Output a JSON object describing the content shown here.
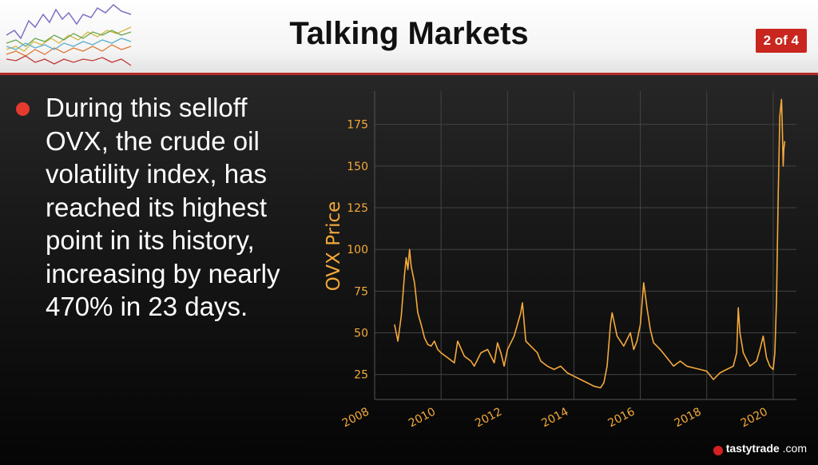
{
  "header": {
    "title": "Talking Markets",
    "page_badge": "2 of 4",
    "logo_icon": "multi-line-chart-logo-icon"
  },
  "bullet": {
    "text": "During this selloff OVX, the crude oil volatility index, has reached its highest point in its history, increasing by nearly 470% in 23 days.",
    "icon": "red-bullet-icon"
  },
  "brand": {
    "name": "tastytrade",
    "suffix": ".com",
    "icon": "cherry-icon"
  },
  "colors": {
    "line": "#f4a93b",
    "accent": "#c8261e",
    "bullet": "#e53a2e"
  },
  "chart_data": {
    "type": "line",
    "title": "",
    "xlabel": "",
    "ylabel": "OVX Price",
    "xlim": [
      2008,
      2020.7
    ],
    "ylim": [
      10,
      195
    ],
    "xticks": [
      "2008",
      "2010",
      "2012",
      "2014",
      "2016",
      "2018",
      "2020"
    ],
    "yticks": [
      "25",
      "50",
      "75",
      "100",
      "125",
      "150",
      "175"
    ],
    "grid": true,
    "series": [
      {
        "color": "#f4a93b",
        "x": [
          2008.6,
          2008.7,
          2008.8,
          2008.9,
          2008.95,
          2009.0,
          2009.05,
          2009.1,
          2009.2,
          2009.3,
          2009.4,
          2009.5,
          2009.6,
          2009.7,
          2009.8,
          2009.9,
          2010.0,
          2010.2,
          2010.4,
          2010.5,
          2010.7,
          2010.9,
          2011.0,
          2011.2,
          2011.4,
          2011.6,
          2011.7,
          2011.8,
          2011.9,
          2012.0,
          2012.2,
          2012.4,
          2012.45,
          2012.55,
          2012.7,
          2012.9,
          2013.0,
          2013.2,
          2013.4,
          2013.6,
          2013.8,
          2014.0,
          2014.2,
          2014.4,
          2014.6,
          2014.8,
          2014.9,
          2015.0,
          2015.1,
          2015.15,
          2015.3,
          2015.5,
          2015.7,
          2015.8,
          2015.9,
          2016.0,
          2016.1,
          2016.2,
          2016.3,
          2016.4,
          2016.6,
          2016.8,
          2017.0,
          2017.2,
          2017.4,
          2017.6,
          2017.8,
          2018.0,
          2018.2,
          2018.4,
          2018.6,
          2018.8,
          2018.9,
          2018.95,
          2019.0,
          2019.1,
          2019.3,
          2019.5,
          2019.6,
          2019.7,
          2019.8,
          2019.9,
          2020.0,
          2020.05,
          2020.1,
          2020.15,
          2020.2,
          2020.25,
          2020.28,
          2020.3,
          2020.32,
          2020.35
        ],
        "y": [
          55,
          45,
          60,
          85,
          95,
          88,
          100,
          90,
          80,
          62,
          55,
          47,
          43,
          42,
          45,
          40,
          38,
          35,
          32,
          45,
          36,
          33,
          30,
          38,
          40,
          32,
          44,
          38,
          30,
          40,
          48,
          62,
          68,
          45,
          42,
          38,
          33,
          30,
          28,
          30,
          26,
          24,
          22,
          20,
          18,
          17,
          20,
          30,
          55,
          62,
          48,
          42,
          50,
          40,
          45,
          55,
          80,
          65,
          52,
          44,
          40,
          35,
          30,
          33,
          30,
          29,
          28,
          27,
          22,
          26,
          28,
          30,
          38,
          65,
          50,
          38,
          30,
          33,
          40,
          48,
          35,
          30,
          28,
          38,
          70,
          130,
          180,
          190,
          170,
          150,
          160,
          165
        ]
      }
    ]
  }
}
